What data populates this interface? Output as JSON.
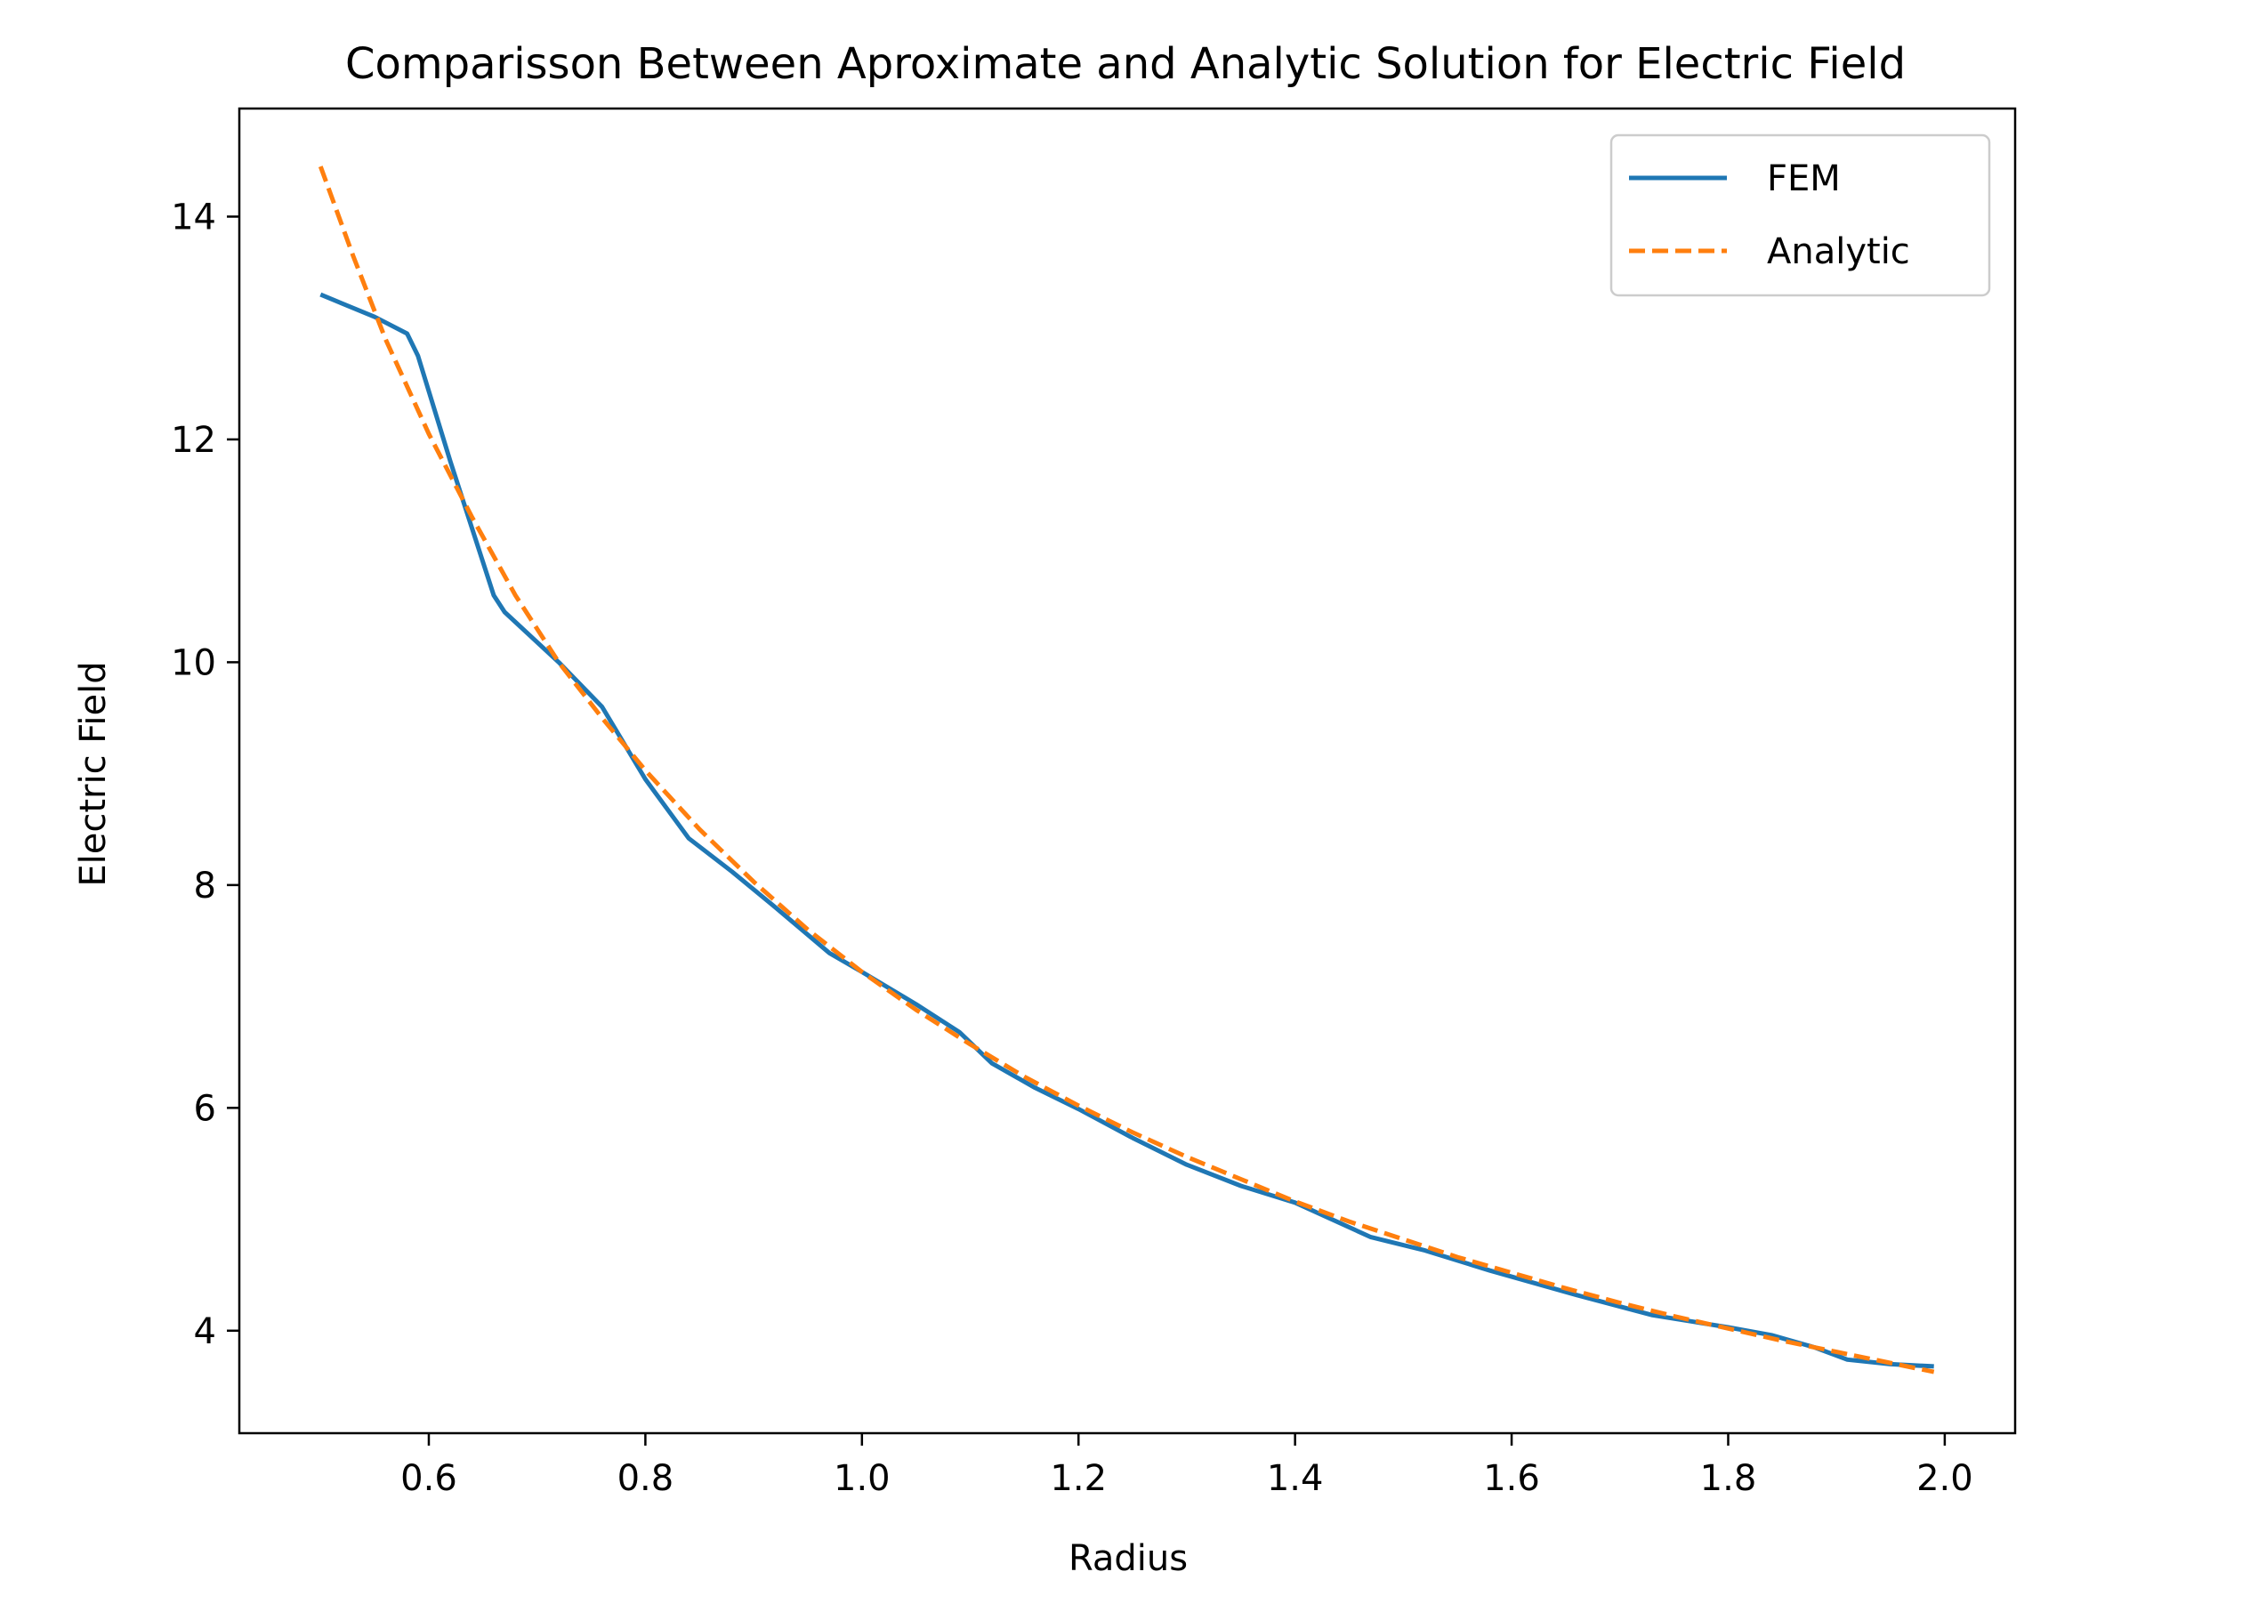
{
  "chart_data": {
    "type": "line",
    "title": "Comparisson Between Aproximate and Analytic Solution for Electric Field",
    "xlabel": "Radius",
    "ylabel": "Electric Field",
    "xlim": [
      0.425,
      2.065
    ],
    "ylim": [
      3.08,
      14.97
    ],
    "xticks": [
      0.6,
      0.8,
      1.0,
      1.2,
      1.4,
      1.6,
      1.8,
      2.0
    ],
    "xtick_labels": [
      "0.6",
      "0.8",
      "1.0",
      "1.2",
      "1.4",
      "1.6",
      "1.8",
      "2.0"
    ],
    "yticks": [
      4,
      6,
      8,
      10,
      12,
      14
    ],
    "ytick_labels": [
      "4",
      "6",
      "8",
      "10",
      "12",
      "14"
    ],
    "grid": false,
    "legend_position": "top-right",
    "series": [
      {
        "name": "FEM",
        "color": "#1f77b4",
        "style": "solid",
        "x": [
          0.5,
          0.55,
          0.58,
          0.59,
          0.62,
          0.66,
          0.67,
          0.72,
          0.76,
          0.8,
          0.84,
          0.88,
          0.92,
          0.97,
          1.0,
          1.05,
          1.09,
          1.12,
          1.16,
          1.2,
          1.25,
          1.3,
          1.35,
          1.4,
          1.47,
          1.52,
          1.58,
          1.66,
          1.73,
          1.8,
          1.84,
          1.88,
          1.91,
          1.95,
          1.99
        ],
        "y": [
          13.3,
          13.1,
          12.95,
          12.75,
          11.8,
          10.6,
          10.45,
          10.0,
          9.6,
          8.95,
          8.42,
          8.12,
          7.8,
          7.39,
          7.22,
          6.93,
          6.68,
          6.4,
          6.18,
          5.99,
          5.73,
          5.49,
          5.3,
          5.15,
          4.84,
          4.72,
          4.54,
          4.32,
          4.14,
          4.03,
          3.96,
          3.85,
          3.74,
          3.7,
          3.68
        ]
      },
      {
        "name": "Analytic",
        "color": "#ff7f0e",
        "style": "dashed",
        "x": [
          0.5,
          0.53,
          0.56,
          0.6,
          0.64,
          0.68,
          0.72,
          0.76,
          0.8,
          0.85,
          0.9,
          0.95,
          1.0,
          1.05,
          1.1,
          1.15,
          1.2,
          1.25,
          1.3,
          1.35,
          1.4,
          1.45,
          1.5,
          1.55,
          1.6,
          1.65,
          1.7,
          1.75,
          1.8,
          1.85,
          1.9,
          1.95,
          1.99
        ],
        "y": [
          14.45,
          13.65,
          12.9,
          12.05,
          11.3,
          10.6,
          10.0,
          9.5,
          9.03,
          8.5,
          8.03,
          7.6,
          7.22,
          6.88,
          6.57,
          6.28,
          6.02,
          5.78,
          5.56,
          5.36,
          5.16,
          4.98,
          4.82,
          4.66,
          4.52,
          4.38,
          4.25,
          4.13,
          4.02,
          3.91,
          3.81,
          3.71,
          3.63
        ]
      }
    ]
  }
}
